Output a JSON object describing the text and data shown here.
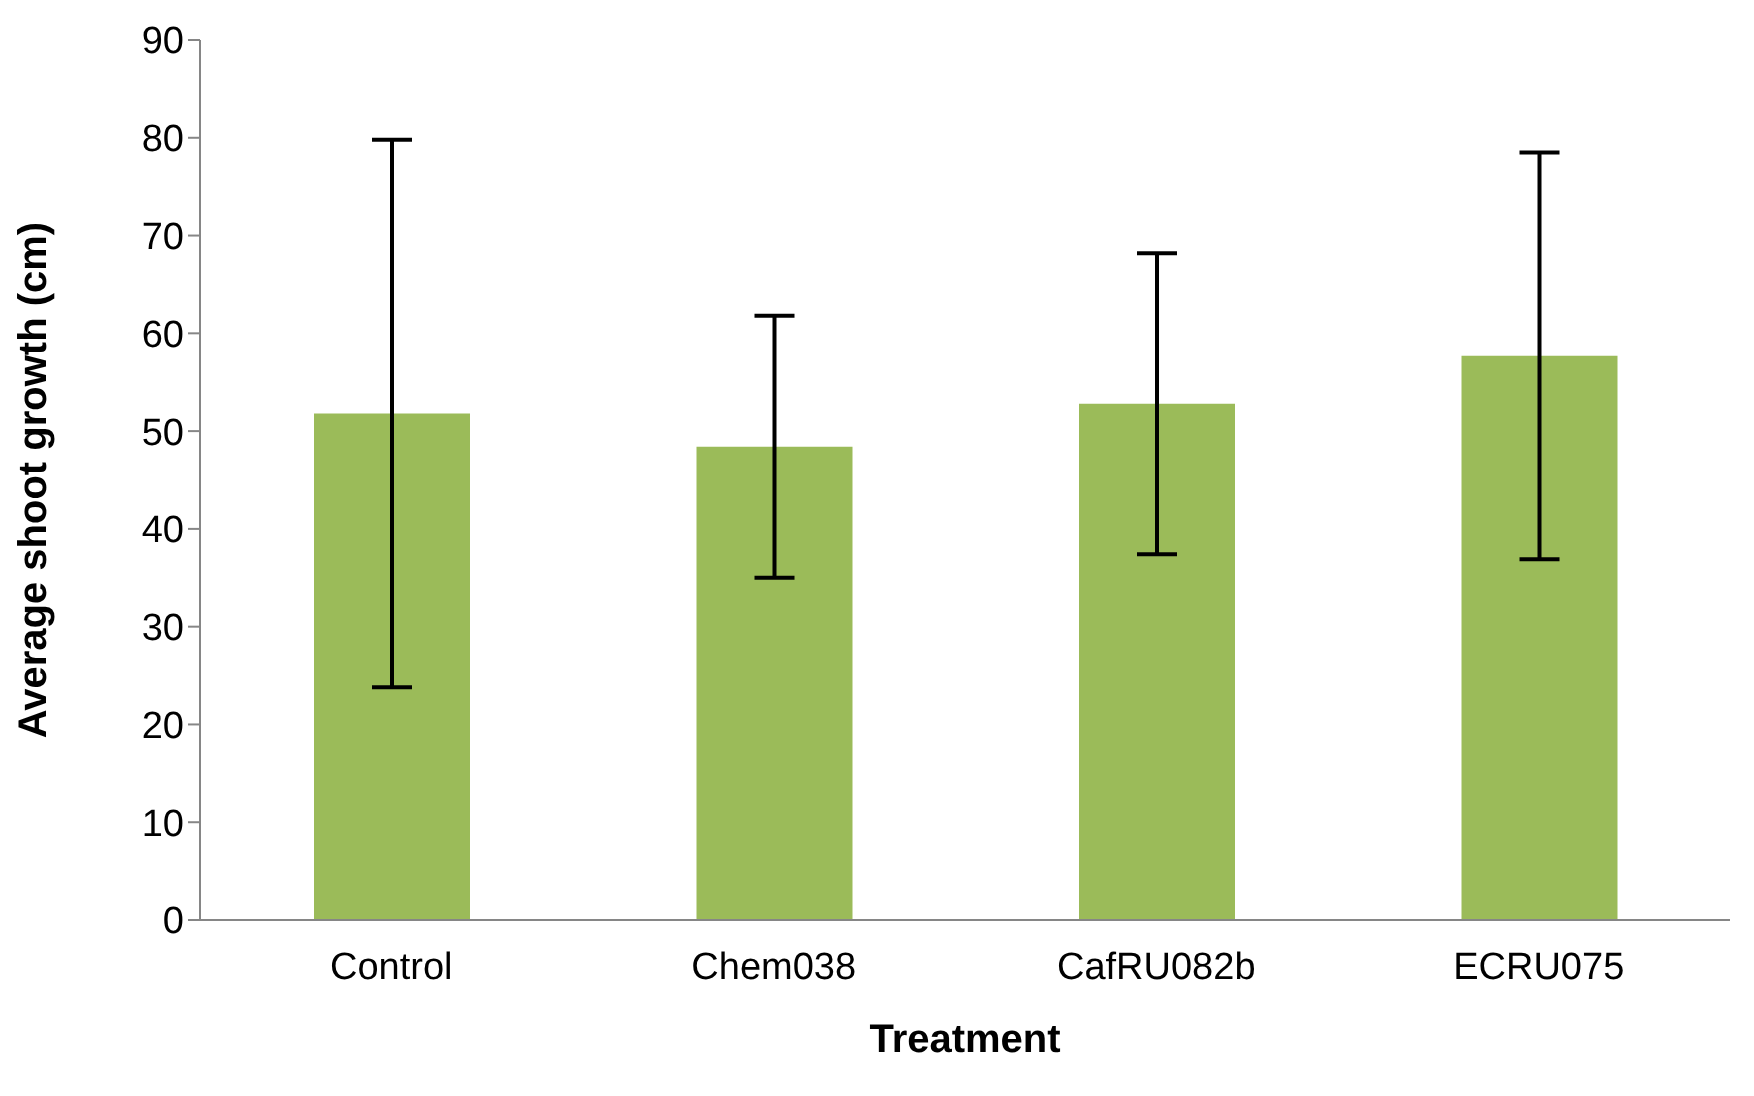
{
  "chart_data": {
    "type": "bar",
    "xlabel": "Treatment",
    "ylabel": "Average shoot growth (cm)",
    "categories": [
      "Control",
      "Chem038",
      "CafRU082b",
      "ECRU075"
    ],
    "values": [
      51.8,
      48.4,
      52.8,
      57.7
    ],
    "errors": [
      28,
      13.4,
      15.4,
      20.8
    ],
    "color": "#9bbb59",
    "ylim": [
      0,
      90
    ],
    "yticks": [
      0,
      10,
      20,
      30,
      40,
      50,
      60,
      70,
      80,
      90
    ],
    "grid": false
  }
}
